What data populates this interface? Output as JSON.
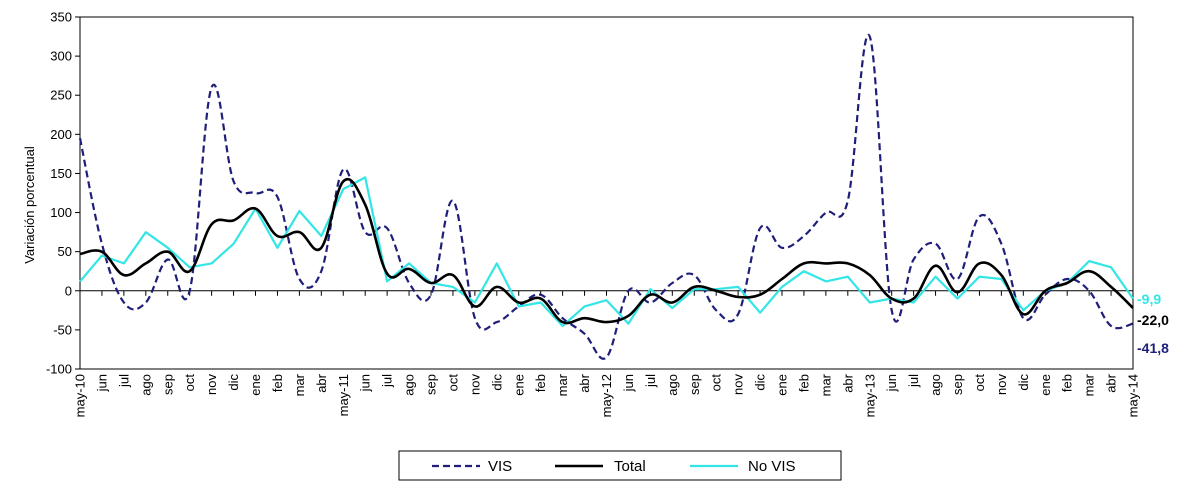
{
  "chart_data": {
    "type": "line",
    "ylabel": "Variación porcentual",
    "ylim": [
      -100,
      350
    ],
    "yticks": [
      -100,
      -50,
      0,
      50,
      100,
      150,
      200,
      250,
      300,
      350
    ],
    "grid": false,
    "legend_position": "bottom",
    "categories": [
      "may-10",
      "jun",
      "jul",
      "ago",
      "sep",
      "oct",
      "nov",
      "dic",
      "ene",
      "feb",
      "mar",
      "abr",
      "may-11",
      "jun",
      "jul",
      "ago",
      "sep",
      "oct",
      "nov",
      "dic",
      "ene",
      "feb",
      "mar",
      "abr",
      "may-12",
      "jun",
      "jul",
      "ago",
      "sep",
      "oct",
      "nov",
      "dic",
      "ene",
      "feb",
      "mar",
      "abr",
      "may-13",
      "jun",
      "jul",
      "ago",
      "sep",
      "oct",
      "nov",
      "dic",
      "ene",
      "feb",
      "mar",
      "abr",
      "may-14"
    ],
    "series": [
      {
        "name": "VIS",
        "color": "#1f1f7a",
        "style": "dashed",
        "values": [
          195,
          60,
          -15,
          -15,
          40,
          0,
          260,
          140,
          125,
          120,
          15,
          25,
          155,
          75,
          80,
          10,
          -5,
          115,
          -35,
          -40,
          -20,
          -5,
          -35,
          -55,
          -85,
          0,
          -15,
          10,
          20,
          -25,
          -30,
          80,
          55,
          70,
          100,
          115,
          325,
          -25,
          40,
          60,
          15,
          95,
          60,
          -35,
          -5,
          15,
          0,
          -45,
          -42
        ]
      },
      {
        "name": "Total",
        "color": "#000000",
        "style": "solid",
        "values": [
          47,
          50,
          20,
          35,
          50,
          25,
          85,
          90,
          105,
          70,
          75,
          55,
          140,
          110,
          22,
          28,
          10,
          20,
          -20,
          5,
          -15,
          -10,
          -40,
          -35,
          -40,
          -32,
          -5,
          -15,
          5,
          0,
          -8,
          -5,
          15,
          35,
          35,
          35,
          20,
          -10,
          -10,
          32,
          -2,
          35,
          20,
          -30,
          0,
          10,
          25,
          5,
          -22
        ]
      },
      {
        "name": "No VIS",
        "color": "#33e5e5",
        "style": "solid",
        "values": [
          12,
          45,
          35,
          75,
          55,
          30,
          35,
          60,
          105,
          55,
          102,
          70,
          130,
          145,
          12,
          35,
          10,
          5,
          -15,
          35,
          -20,
          -15,
          -45,
          -20,
          -12,
          -42,
          2,
          -22,
          2,
          2,
          5,
          -28,
          5,
          25,
          12,
          18,
          -15,
          -10,
          -15,
          18,
          -10,
          18,
          15,
          -25,
          0,
          10,
          38,
          30,
          -10
        ]
      }
    ],
    "end_labels": [
      {
        "text": "-9,9",
        "color": "#33e5e5",
        "value": -9.9
      },
      {
        "text": "-22,0",
        "color": "#000000",
        "value": -22.0
      },
      {
        "text": "-41,8",
        "color": "#1f1f7a",
        "value": -41.8
      }
    ]
  }
}
